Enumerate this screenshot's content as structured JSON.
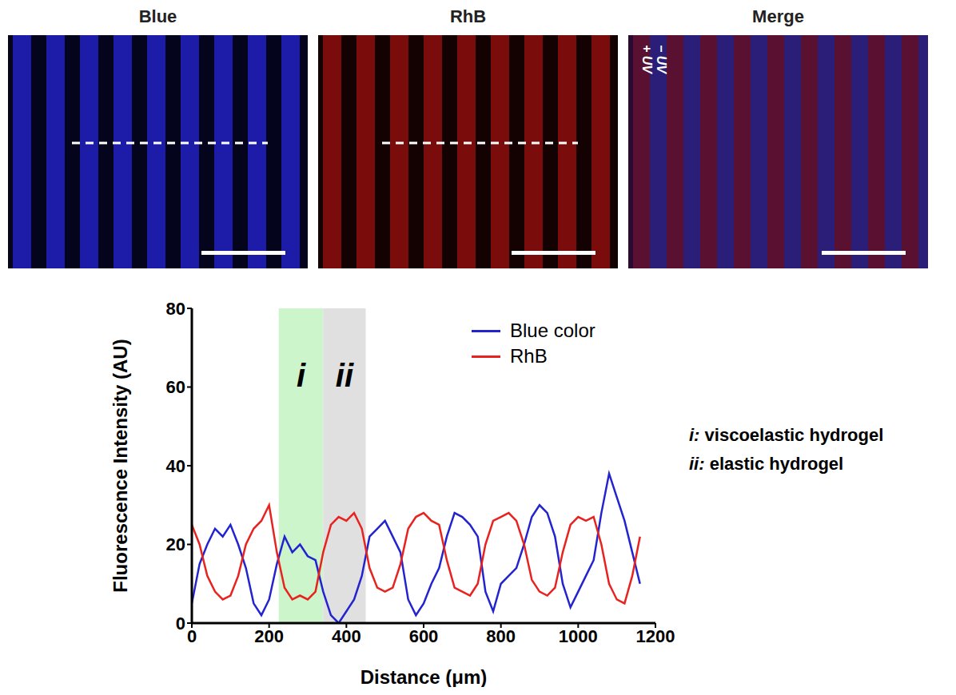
{
  "panels": [
    {
      "title": "Blue",
      "stripe_color": "#1c1ca8"
    },
    {
      "title": "RhB",
      "stripe_color": "#7a0c0c"
    },
    {
      "title": "Merge",
      "labels": [
        "+ UV",
        "− UV"
      ]
    }
  ],
  "chart_data": {
    "type": "line",
    "x_label": "Distance (μm)",
    "y_label": "Fluorescence Intensity (AU)",
    "xlim": [
      0,
      1200
    ],
    "xticks": [
      0,
      200,
      400,
      600,
      800,
      1000,
      1200
    ],
    "ylim": [
      0,
      80
    ],
    "yticks": [
      0,
      20,
      40,
      60,
      80
    ],
    "legend": "upper right",
    "x": [
      0,
      20,
      40,
      60,
      80,
      100,
      120,
      140,
      160,
      180,
      200,
      220,
      240,
      260,
      280,
      300,
      320,
      340,
      360,
      380,
      400,
      420,
      440,
      460,
      480,
      500,
      520,
      540,
      560,
      580,
      600,
      620,
      640,
      660,
      680,
      700,
      720,
      740,
      760,
      780,
      800,
      820,
      840,
      860,
      880,
      900,
      920,
      940,
      960,
      980,
      1000,
      1020,
      1040,
      1060,
      1080,
      1100,
      1120,
      1140,
      1160
    ],
    "series": [
      {
        "name": "Blue color",
        "color": "#2323d0",
        "values": [
          5,
          15,
          20,
          24,
          22,
          25,
          20,
          14,
          5,
          2,
          6,
          15,
          22,
          18,
          20,
          17,
          16,
          8,
          2,
          0,
          3,
          6,
          12,
          22,
          24,
          26,
          22,
          18,
          6,
          2,
          5,
          10,
          14,
          22,
          28,
          27,
          25,
          22,
          8,
          3,
          10,
          12,
          14,
          20,
          27,
          30,
          28,
          22,
          10,
          4,
          8,
          12,
          16,
          28,
          38,
          32,
          26,
          18,
          10
        ]
      },
      {
        "name": "RhB",
        "color": "#e8231f",
        "values": [
          25,
          20,
          12,
          8,
          6,
          7,
          12,
          20,
          24,
          26,
          30,
          18,
          9,
          6,
          7,
          6,
          8,
          18,
          25,
          27,
          26,
          28,
          24,
          14,
          9,
          8,
          9,
          15,
          24,
          27,
          28,
          26,
          25,
          16,
          9,
          8,
          7,
          10,
          20,
          26,
          27,
          28,
          26,
          20,
          11,
          8,
          7,
          9,
          18,
          25,
          27,
          26,
          27,
          20,
          10,
          6,
          5,
          12,
          22
        ]
      }
    ],
    "regions": [
      {
        "label": "i",
        "x": [
          225,
          340
        ],
        "color": "#ccf5cc"
      },
      {
        "label": "ii",
        "x": [
          340,
          450
        ],
        "color": "#e0e0e0"
      }
    ],
    "annotations": [
      {
        "key": "i:",
        "text": "viscoelastic hydrogel"
      },
      {
        "key": "ii:",
        "text": "elastic hydrogel"
      }
    ]
  }
}
